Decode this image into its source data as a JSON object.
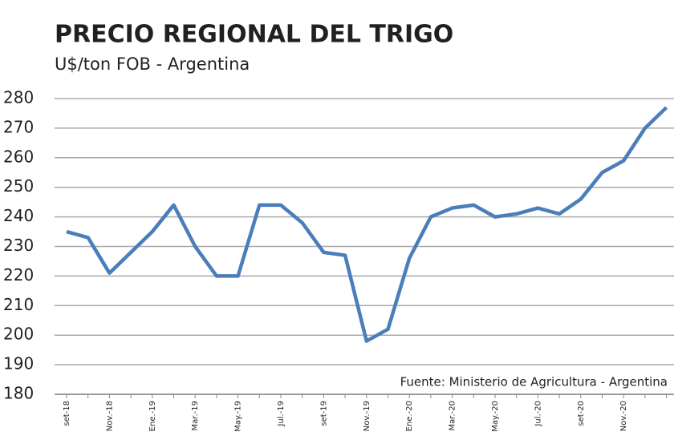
{
  "chart_data": {
    "type": "line",
    "title": "PRECIO REGIONAL DEL TRIGO",
    "subtitle": "U$/ton FOB - Argentina",
    "annotation": "Fuente: Ministerio de Agricultura - Argentina",
    "categories": [
      "set-18",
      null,
      "Nov.-18",
      null,
      "Ene.-19",
      null,
      "Mar.-19",
      null,
      "May.-19",
      null,
      "Jul.-19",
      null,
      "set-19",
      null,
      "Nov.-19",
      null,
      "Ene.-20",
      null,
      "Mar.-20",
      null,
      "May.-20",
      null,
      "Jul.-20",
      null,
      "set-20",
      null,
      "Nov.-20",
      null,
      null
    ],
    "series": [
      {
        "name": "Trigo",
        "color": "#4a7ebb",
        "values": [
          235,
          233,
          221,
          228,
          235,
          244,
          230,
          220,
          220,
          244,
          244,
          238,
          228,
          227,
          198,
          202,
          226,
          240,
          243,
          244,
          240,
          241,
          243,
          241,
          246,
          255,
          259,
          270,
          277
        ]
      }
    ],
    "ylim": [
      180,
      280
    ],
    "yticks": [
      180,
      190,
      200,
      210,
      220,
      230,
      240,
      250,
      260,
      270,
      280
    ],
    "grid": true
  }
}
